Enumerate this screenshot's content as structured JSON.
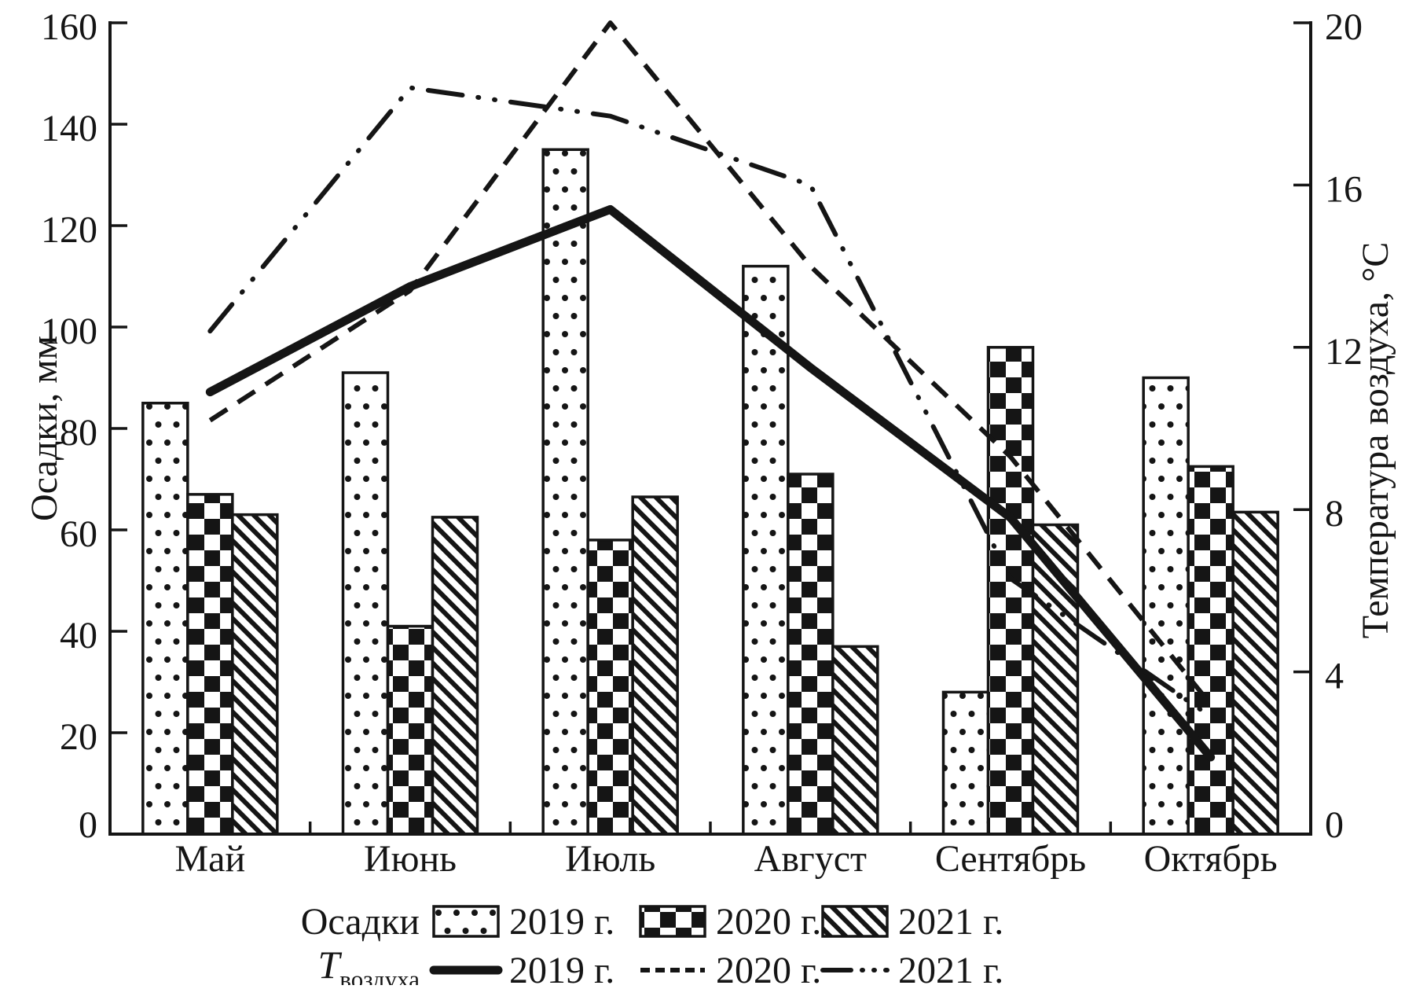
{
  "figure": {
    "bg": "#ffffff",
    "ink": "#151515"
  },
  "left_axis": {
    "title": "Осадки, мм",
    "ticks": [
      0,
      20,
      40,
      60,
      80,
      100,
      120,
      140,
      160
    ],
    "max": 160
  },
  "right_axis": {
    "title": "Температура воздуха, °С",
    "ticks": [
      0,
      4,
      8,
      12,
      16,
      20
    ],
    "max": 20
  },
  "x_axis": {
    "categories": [
      "Май",
      "Июнь",
      "Июль",
      "Август",
      "Сентябрь",
      "Октябрь"
    ]
  },
  "legend": {
    "precip_label": "Осадки",
    "temp_label_main": "T",
    "temp_label_sub": "воздуха",
    "bar_items": [
      {
        "year": "2019 г.",
        "pattern": "dots"
      },
      {
        "year": "2020 г.",
        "pattern": "checker"
      },
      {
        "year": "2021 г.",
        "pattern": "hatch"
      }
    ],
    "line_items": [
      {
        "year": "2019 г.",
        "style": "solid-thick"
      },
      {
        "year": "2020 г.",
        "style": "dashed"
      },
      {
        "year": "2021 г.",
        "style": "dash-dot-dot"
      }
    ]
  },
  "chart_data": {
    "type": "bar+line",
    "categories": [
      "Май",
      "Июнь",
      "Июль",
      "Август",
      "Сентябрь",
      "Октябрь"
    ],
    "bar_series": [
      {
        "name": "Осадки 2019 г.",
        "pattern": "dots",
        "axis": "left",
        "unit": "мм",
        "values": [
          85,
          91,
          135,
          112,
          28,
          90
        ]
      },
      {
        "name": "Осадки 2020 г.",
        "pattern": "checker",
        "axis": "left",
        "unit": "мм",
        "values": [
          67,
          41,
          58,
          71,
          96,
          72.5
        ]
      },
      {
        "name": "Осадки 2021 г.",
        "pattern": "hatch",
        "axis": "left",
        "unit": "мм",
        "values": [
          63,
          62.5,
          66.5,
          37,
          61,
          63.5
        ]
      }
    ],
    "line_series": [
      {
        "name": "Tвоздуха 2019 г.",
        "style": "solid-thick",
        "axis": "right",
        "unit": "°С",
        "values": [
          10.9,
          13.5,
          15.4,
          11.5,
          7.8,
          1.9
        ]
      },
      {
        "name": "Tвоздуха 2020 г.",
        "style": "dashed",
        "axis": "right",
        "unit": "°С",
        "values": [
          10.2,
          13.4,
          20,
          14,
          9.3,
          3.2
        ]
      },
      {
        "name": "Tвоздуха 2021 г.",
        "style": "dash-dot-dot",
        "axis": "right",
        "unit": "°С",
        "values": [
          12.4,
          18.4,
          17.7,
          16,
          6.3,
          2.9
        ]
      }
    ],
    "ylabel_left": "Осадки, мм",
    "ylabel_right": "Температура воздуха, °С",
    "ylim_left": [
      0,
      160
    ],
    "ylim_right": [
      0,
      20
    ],
    "grid": false,
    "legend_position": "bottom"
  }
}
